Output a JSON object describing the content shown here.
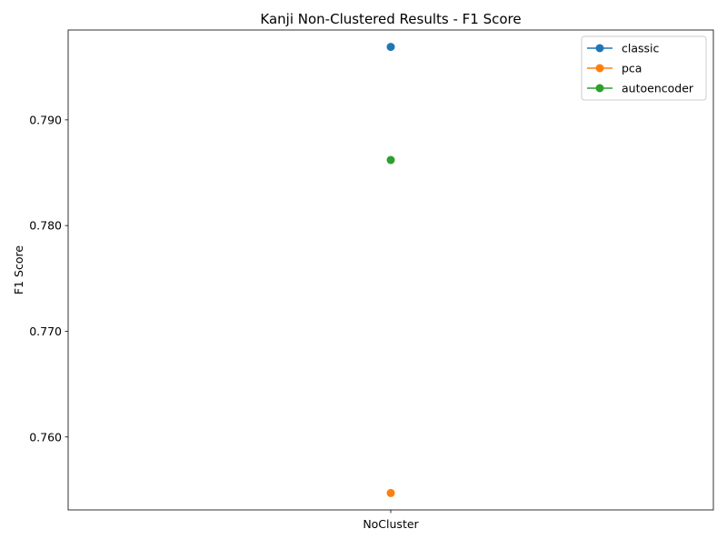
{
  "chart_data": {
    "type": "line",
    "title": "Kanji Non-Clustered Results - F1 Score",
    "xlabel": "",
    "ylabel": "F1 Score",
    "categories": [
      "NoCluster"
    ],
    "ylim": [
      0.7531,
      0.7985
    ],
    "yticks": [
      0.76,
      0.77,
      0.78,
      0.79
    ],
    "ytick_labels": [
      "0.760",
      "0.770",
      "0.780",
      "0.790"
    ],
    "grid": false,
    "legend_position": "top-right",
    "series": [
      {
        "name": "classic",
        "values": [
          0.7969
        ],
        "color": "#1f77b4"
      },
      {
        "name": "pca",
        "values": [
          0.7547
        ],
        "color": "#ff7f0e"
      },
      {
        "name": "autoencoder",
        "values": [
          0.7862
        ],
        "color": "#2ca02c"
      }
    ]
  }
}
